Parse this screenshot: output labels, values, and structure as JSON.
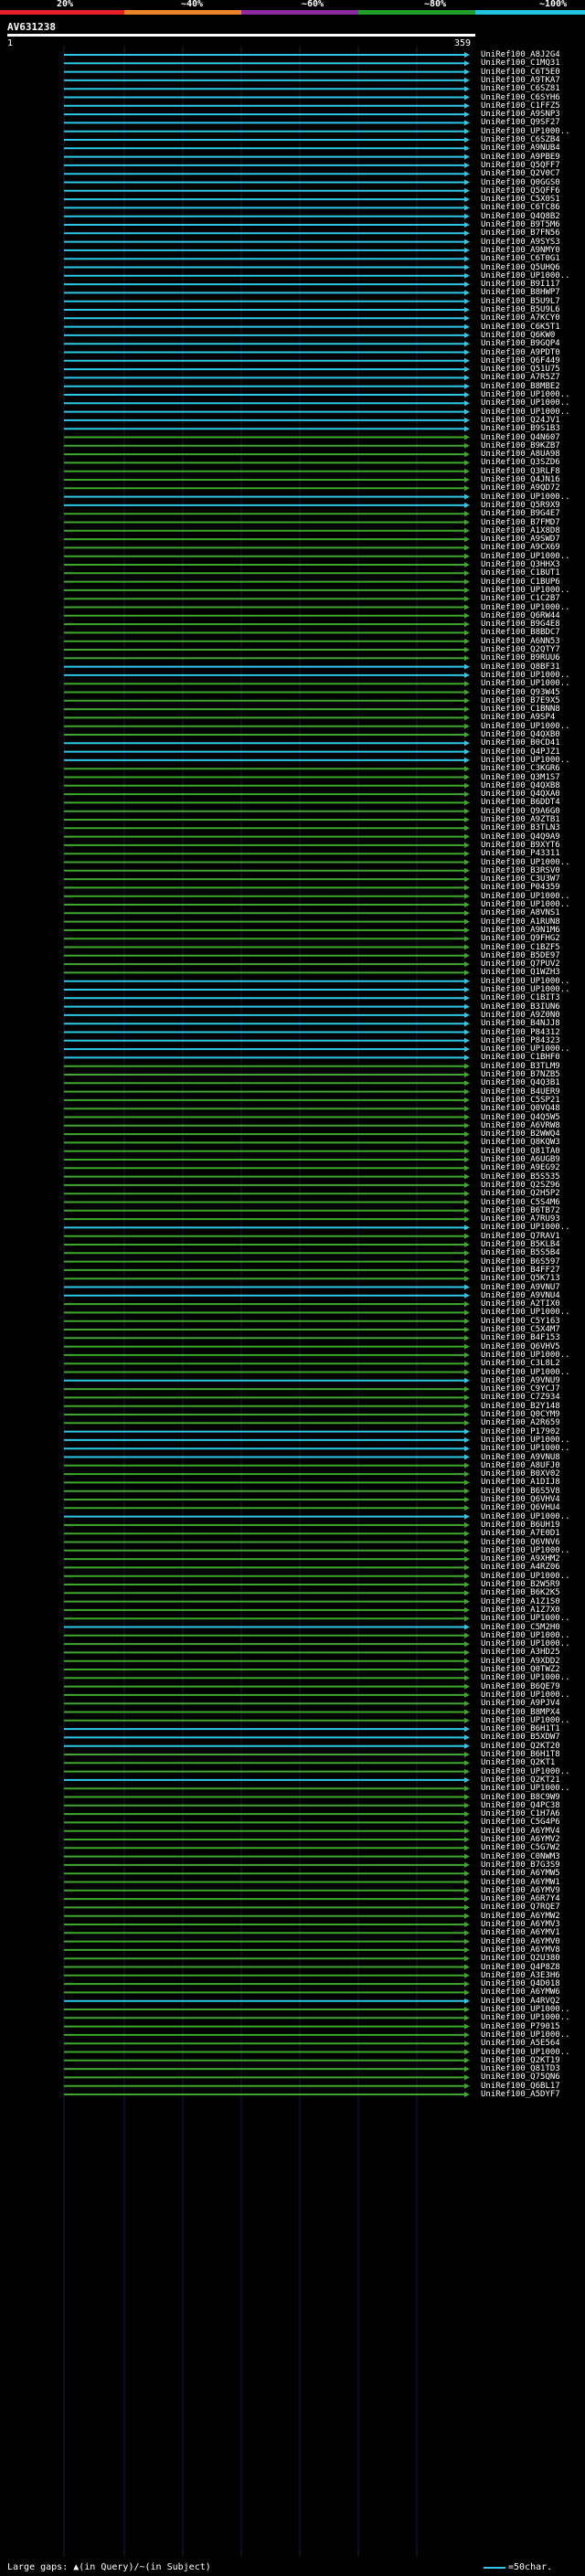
{
  "scale": {
    "labels": [
      "20%",
      "~40%",
      "~60%",
      "~80%",
      "~100%"
    ],
    "colors": [
      "#e8202a",
      "#e8832a",
      "#8a2a9e",
      "#1f9e2a",
      "#23c3e0"
    ]
  },
  "query": {
    "title": "AV631238",
    "start_label": "1",
    "end_label": "359"
  },
  "colors": {
    "cyan": "#2ec7e8",
    "green": "#3ea82c",
    "background": "#000000"
  },
  "legend": {
    "text": "Large gaps: ▲(in Query)/~(in Subject)",
    "key_label": "=50char."
  },
  "hits": [
    {
      "label": "UniRef100_A8J2G4",
      "color": "c"
    },
    {
      "label": "UniRef100_C1MQ31",
      "color": "c"
    },
    {
      "label": "UniRef100_C6T5E0",
      "color": "c"
    },
    {
      "label": "UniRef100_A9TKA7",
      "color": "c"
    },
    {
      "label": "UniRef100_C6SZ81",
      "color": "c"
    },
    {
      "label": "UniRef100_C6SYH6",
      "color": "c"
    },
    {
      "label": "UniRef100_C1FFZ5",
      "color": "c"
    },
    {
      "label": "UniRef100_A9SNP3",
      "color": "c"
    },
    {
      "label": "UniRef100_Q9SF27",
      "color": "c"
    },
    {
      "label": "UniRef100_UP1000..",
      "color": "c"
    },
    {
      "label": "UniRef100_C6SZB4",
      "color": "c"
    },
    {
      "label": "UniRef100_A9NUB4",
      "color": "c"
    },
    {
      "label": "UniRef100_A9PBE9",
      "color": "c"
    },
    {
      "label": "UniRef100_Q5QFF7",
      "color": "c"
    },
    {
      "label": "UniRef100_Q2V0C7",
      "color": "c"
    },
    {
      "label": "UniRef100_Q0GGS0",
      "color": "c"
    },
    {
      "label": "UniRef100_Q5QFF6",
      "color": "c"
    },
    {
      "label": "UniRef100_C5X0S1",
      "color": "c"
    },
    {
      "label": "UniRef100_C6TC86",
      "color": "c"
    },
    {
      "label": "UniRef100_Q4Q8B2",
      "color": "c"
    },
    {
      "label": "UniRef100_B9T5M6",
      "color": "c"
    },
    {
      "label": "UniRef100_B7FN56",
      "color": "c"
    },
    {
      "label": "UniRef100_A9SYS3",
      "color": "c"
    },
    {
      "label": "UniRef100_A9NMY0",
      "color": "c"
    },
    {
      "label": "UniRef100_C6T0G1",
      "color": "c"
    },
    {
      "label": "UniRef100_Q5UHQ6",
      "color": "c"
    },
    {
      "label": "UniRef100_UP1000..",
      "color": "c"
    },
    {
      "label": "UniRef100_B9I117",
      "color": "c"
    },
    {
      "label": "UniRef100_B8HWP7",
      "color": "c"
    },
    {
      "label": "UniRef100_B5U9L7",
      "color": "c"
    },
    {
      "label": "UniRef100_B5U9L6",
      "color": "c"
    },
    {
      "label": "UniRef100_A7KCY0",
      "color": "c"
    },
    {
      "label": "UniRef100_C6K5T1",
      "color": "c"
    },
    {
      "label": "UniRef100_Q6KW0",
      "color": "c"
    },
    {
      "label": "UniRef100_B9GQP4",
      "color": "c"
    },
    {
      "label": "UniRef100_A9PDT0",
      "color": "c"
    },
    {
      "label": "UniRef100_Q6F449",
      "color": "c"
    },
    {
      "label": "UniRef100_Q51U75",
      "color": "c"
    },
    {
      "label": "UniRef100_A7R5Z7",
      "color": "c"
    },
    {
      "label": "UniRef100_B8MBE2",
      "color": "c"
    },
    {
      "label": "UniRef100_UP1000..",
      "color": "c"
    },
    {
      "label": "UniRef100_UP1000..",
      "color": "c"
    },
    {
      "label": "UniRef100_UP1000..",
      "color": "c"
    },
    {
      "label": "UniRef100_Q24JV1",
      "color": "c"
    },
    {
      "label": "UniRef100_B9S1B3",
      "color": "c"
    },
    {
      "label": "UniRef100_Q4N607",
      "color": "g"
    },
    {
      "label": "UniRef100_B9KZB7",
      "color": "g"
    },
    {
      "label": "UniRef100_A8UA98",
      "color": "g"
    },
    {
      "label": "UniRef100_Q3SZD6",
      "color": "g"
    },
    {
      "label": "UniRef100_Q3RLF8",
      "color": "g"
    },
    {
      "label": "UniRef100_Q4JN16",
      "color": "g"
    },
    {
      "label": "UniRef100_A9QD72",
      "color": "g"
    },
    {
      "label": "UniRef100_UP1000..",
      "color": "c"
    },
    {
      "label": "UniRef100_Q5R9X9",
      "color": "c"
    },
    {
      "label": "UniRef100_B9G4E7",
      "color": "g"
    },
    {
      "label": "UniRef100_B7FMD7",
      "color": "g"
    },
    {
      "label": "UniRef100_A1X8D8",
      "color": "g"
    },
    {
      "label": "UniRef100_A9SWD7",
      "color": "g"
    },
    {
      "label": "UniRef100_A9CX69",
      "color": "g"
    },
    {
      "label": "UniRef100_UP1000..",
      "color": "g"
    },
    {
      "label": "UniRef100_Q3HHX3",
      "color": "g"
    },
    {
      "label": "UniRef100_C1BUT1",
      "color": "g"
    },
    {
      "label": "UniRef100_C1BUP6",
      "color": "g"
    },
    {
      "label": "UniRef100_UP1000..",
      "color": "g"
    },
    {
      "label": "UniRef100_C1C2B7",
      "color": "g"
    },
    {
      "label": "UniRef100_UP1000..",
      "color": "g"
    },
    {
      "label": "UniRef100_Q6RW44",
      "color": "g"
    },
    {
      "label": "UniRef100_B9G4E8",
      "color": "g"
    },
    {
      "label": "UniRef100_B8BDC7",
      "color": "g"
    },
    {
      "label": "UniRef100_A6NN53",
      "color": "g"
    },
    {
      "label": "UniRef100_Q2QTY7",
      "color": "g"
    },
    {
      "label": "UniRef100_B9RUU6",
      "color": "g"
    },
    {
      "label": "UniRef100_Q8BF31",
      "color": "c"
    },
    {
      "label": "UniRef100_UP1000..",
      "color": "c"
    },
    {
      "label": "UniRef100_UP1000..",
      "color": "g"
    },
    {
      "label": "UniRef100_Q93W45",
      "color": "g"
    },
    {
      "label": "UniRef100_B7E9X5",
      "color": "g"
    },
    {
      "label": "UniRef100_C1BNN8",
      "color": "g"
    },
    {
      "label": "UniRef100_A9SP4",
      "color": "g"
    },
    {
      "label": "UniRef100_UP1000..",
      "color": "g"
    },
    {
      "label": "UniRef100_Q4QXB0",
      "color": "g"
    },
    {
      "label": "UniRef100_B0CD41",
      "color": "c"
    },
    {
      "label": "UniRef100_Q4PJZ1",
      "color": "c"
    },
    {
      "label": "UniRef100_UP1000..",
      "color": "c"
    },
    {
      "label": "UniRef100_C3KGR6",
      "color": "g"
    },
    {
      "label": "UniRef100_Q3M1S7",
      "color": "g"
    },
    {
      "label": "UniRef100_Q4QXB8",
      "color": "g"
    },
    {
      "label": "UniRef100_Q4QXA0",
      "color": "g"
    },
    {
      "label": "UniRef100_B6DDT4",
      "color": "g"
    },
    {
      "label": "UniRef100_Q9A6G0",
      "color": "g"
    },
    {
      "label": "UniRef100_A9ZTB1",
      "color": "g"
    },
    {
      "label": "UniRef100_B3TLN3",
      "color": "g"
    },
    {
      "label": "UniRef100_Q4Q9A9",
      "color": "g"
    },
    {
      "label": "UniRef100_B9XYT6",
      "color": "g"
    },
    {
      "label": "UniRef100_P43311",
      "color": "g"
    },
    {
      "label": "UniRef100_UP1000..",
      "color": "g"
    },
    {
      "label": "UniRef100_B3RSV0",
      "color": "g"
    },
    {
      "label": "UniRef100_C3U3W7",
      "color": "g"
    },
    {
      "label": "UniRef100_P04359",
      "color": "g"
    },
    {
      "label": "UniRef100_UP1000..",
      "color": "g"
    },
    {
      "label": "UniRef100_UP1000..",
      "color": "g"
    },
    {
      "label": "UniRef100_A8VNS1",
      "color": "g"
    },
    {
      "label": "UniRef100_A1RUN8",
      "color": "g"
    },
    {
      "label": "UniRef100_A9N1M6",
      "color": "g"
    },
    {
      "label": "UniRef100_Q9FHG2",
      "color": "g"
    },
    {
      "label": "UniRef100_C1BZF5",
      "color": "g"
    },
    {
      "label": "UniRef100_B5DE97",
      "color": "g"
    },
    {
      "label": "UniRef100_Q7PUV2",
      "color": "g"
    },
    {
      "label": "UniRef100_Q1WZH3",
      "color": "g"
    },
    {
      "label": "UniRef100_UP1000..",
      "color": "c"
    },
    {
      "label": "UniRef100_UP1000..",
      "color": "c"
    },
    {
      "label": "UniRef100_C1BIT3",
      "color": "c"
    },
    {
      "label": "UniRef100_B3IUN6",
      "color": "c"
    },
    {
      "label": "UniRef100_A9Z0N0",
      "color": "c"
    },
    {
      "label": "UniRef100_B4NJJ8",
      "color": "c"
    },
    {
      "label": "UniRef100_P84312",
      "color": "c"
    },
    {
      "label": "UniRef100_P84323",
      "color": "c"
    },
    {
      "label": "UniRef100_UP1000..",
      "color": "c"
    },
    {
      "label": "UniRef100_C1BHF0",
      "color": "c"
    },
    {
      "label": "UniRef100_B3TLM9",
      "color": "g"
    },
    {
      "label": "UniRef100_B7NZB5",
      "color": "g"
    },
    {
      "label": "UniRef100_Q4Q3B1",
      "color": "g"
    },
    {
      "label": "UniRef100_B4UER9",
      "color": "g"
    },
    {
      "label": "UniRef100_C5SP21",
      "color": "g"
    },
    {
      "label": "UniRef100_Q0VQ48",
      "color": "g"
    },
    {
      "label": "UniRef100_Q4Q5W5",
      "color": "g"
    },
    {
      "label": "UniRef100_A6VRW8",
      "color": "g"
    },
    {
      "label": "UniRef100_B2WWQ4",
      "color": "g"
    },
    {
      "label": "UniRef100_Q8KQW3",
      "color": "g"
    },
    {
      "label": "UniRef100_Q81TA0",
      "color": "g"
    },
    {
      "label": "UniRef100_A6UGB9",
      "color": "g"
    },
    {
      "label": "UniRef100_A9EG92",
      "color": "g"
    },
    {
      "label": "UniRef100_B5S535",
      "color": "g"
    },
    {
      "label": "UniRef100_Q2SZ96",
      "color": "g"
    },
    {
      "label": "UniRef100_Q2H5P2",
      "color": "g"
    },
    {
      "label": "UniRef100_C5S4M6",
      "color": "g"
    },
    {
      "label": "UniRef100_B6TB72",
      "color": "g"
    },
    {
      "label": "UniRef100_A7RU93",
      "color": "g"
    },
    {
      "label": "UniRef100_UP1000..",
      "color": "c"
    },
    {
      "label": "UniRef100_Q7RAV1",
      "color": "g"
    },
    {
      "label": "UniRef100_B5KLB4",
      "color": "g"
    },
    {
      "label": "UniRef100_B5S5B4",
      "color": "g"
    },
    {
      "label": "UniRef100_B6S597",
      "color": "g"
    },
    {
      "label": "UniRef100_B4FF27",
      "color": "g"
    },
    {
      "label": "UniRef100_Q5K713",
      "color": "g"
    },
    {
      "label": "UniRef100_A9VNU7",
      "color": "c"
    },
    {
      "label": "UniRef100_A9VNU4",
      "color": "c"
    },
    {
      "label": "UniRef100_A2TIX0",
      "color": "g"
    },
    {
      "label": "UniRef100_UP1000..",
      "color": "g"
    },
    {
      "label": "UniRef100_C5Y163",
      "color": "g"
    },
    {
      "label": "UniRef100_C5X4M7",
      "color": "g"
    },
    {
      "label": "UniRef100_B4F153",
      "color": "g"
    },
    {
      "label": "UniRef100_Q6VHV5",
      "color": "g"
    },
    {
      "label": "UniRef100_UP1000..",
      "color": "g"
    },
    {
      "label": "UniRef100_C3L8L2",
      "color": "g"
    },
    {
      "label": "UniRef100_UP1000..",
      "color": "g"
    },
    {
      "label": "UniRef100_A9VNU9",
      "color": "c"
    },
    {
      "label": "UniRef100_C9YCJ7",
      "color": "g"
    },
    {
      "label": "UniRef100_C7Z934",
      "color": "g"
    },
    {
      "label": "UniRef100_B2Y148",
      "color": "g"
    },
    {
      "label": "UniRef100_Q0CYM9",
      "color": "g"
    },
    {
      "label": "UniRef100_A2R659",
      "color": "g"
    },
    {
      "label": "UniRef100_P17902",
      "color": "c"
    },
    {
      "label": "UniRef100_UP1000..",
      "color": "c"
    },
    {
      "label": "UniRef100_UP1000..",
      "color": "c"
    },
    {
      "label": "UniRef100_A9VNU8",
      "color": "c"
    },
    {
      "label": "UniRef100_A8UFJ0",
      "color": "g"
    },
    {
      "label": "UniRef100_B0XV02",
      "color": "g"
    },
    {
      "label": "UniRef100_A1DIJ8",
      "color": "g"
    },
    {
      "label": "UniRef100_B6S5V8",
      "color": "g"
    },
    {
      "label": "UniRef100_Q6VHV4",
      "color": "g"
    },
    {
      "label": "UniRef100_Q6VHU4",
      "color": "g"
    },
    {
      "label": "UniRef100_UP1000..",
      "color": "c"
    },
    {
      "label": "UniRef100_B6UH19",
      "color": "g"
    },
    {
      "label": "UniRef100_A7E0D1",
      "color": "g"
    },
    {
      "label": "UniRef100_Q6VNV6",
      "color": "g"
    },
    {
      "label": "UniRef100_UP1000..",
      "color": "g"
    },
    {
      "label": "UniRef100_A9XHM2",
      "color": "g"
    },
    {
      "label": "UniRef100_A4RZ06",
      "color": "g"
    },
    {
      "label": "UniRef100_UP1000..",
      "color": "g"
    },
    {
      "label": "UniRef100_B2W5R9",
      "color": "g"
    },
    {
      "label": "UniRef100_B6K2K5",
      "color": "g"
    },
    {
      "label": "UniRef100_A1Z1S0",
      "color": "g"
    },
    {
      "label": "UniRef100_A1Z7X0",
      "color": "g"
    },
    {
      "label": "UniRef100_UP1000..",
      "color": "g"
    },
    {
      "label": "UniRef100_C5M2H0",
      "color": "c"
    },
    {
      "label": "UniRef100_UP1000..",
      "color": "g"
    },
    {
      "label": "UniRef100_UP1000..",
      "color": "g"
    },
    {
      "label": "UniRef100_A3HD25",
      "color": "g"
    },
    {
      "label": "UniRef100_A9XDD2",
      "color": "g"
    },
    {
      "label": "UniRef100_Q0TWZ2",
      "color": "g"
    },
    {
      "label": "UniRef100_UP1000..",
      "color": "g"
    },
    {
      "label": "UniRef100_B6QE79",
      "color": "g"
    },
    {
      "label": "UniRef100_UP1000..",
      "color": "g"
    },
    {
      "label": "UniRef100_A9PJV4",
      "color": "g"
    },
    {
      "label": "UniRef100_B8MPX4",
      "color": "g"
    },
    {
      "label": "UniRef100_UP1000..",
      "color": "g"
    },
    {
      "label": "UniRef100_B6H1T1",
      "color": "c"
    },
    {
      "label": "UniRef100_B5XDW7",
      "color": "c"
    },
    {
      "label": "UniRef100_Q2KT20",
      "color": "c"
    },
    {
      "label": "UniRef100_B6H1T8",
      "color": "g"
    },
    {
      "label": "UniRef100_Q2KT1",
      "color": "g"
    },
    {
      "label": "UniRef100_UP1000..",
      "color": "g"
    },
    {
      "label": "UniRef100_Q2KT21",
      "color": "c"
    },
    {
      "label": "UniRef100_UP1000..",
      "color": "g"
    },
    {
      "label": "UniRef100_B8C9W9",
      "color": "g"
    },
    {
      "label": "UniRef100_Q4PC38",
      "color": "g"
    },
    {
      "label": "UniRef100_C1H7A6",
      "color": "g"
    },
    {
      "label": "UniRef100_C5G4P6",
      "color": "g"
    },
    {
      "label": "UniRef100_A6YMV4",
      "color": "g"
    },
    {
      "label": "UniRef100_A6YMV2",
      "color": "g"
    },
    {
      "label": "UniRef100_C5G7W2",
      "color": "g"
    },
    {
      "label": "UniRef100_C0NWM3",
      "color": "g"
    },
    {
      "label": "UniRef100_B7G3S9",
      "color": "g"
    },
    {
      "label": "UniRef100_A6YMW5",
      "color": "g"
    },
    {
      "label": "UniRef100_A6YMW1",
      "color": "g"
    },
    {
      "label": "UniRef100_A6YMV9",
      "color": "g"
    },
    {
      "label": "UniRef100_A6R7Y4",
      "color": "g"
    },
    {
      "label": "UniRef100_Q7RQE7",
      "color": "g"
    },
    {
      "label": "UniRef100_A6YMW2",
      "color": "g"
    },
    {
      "label": "UniRef100_A6YMV3",
      "color": "g"
    },
    {
      "label": "UniRef100_A6YMV1",
      "color": "g"
    },
    {
      "label": "UniRef100_A6YMV0",
      "color": "g"
    },
    {
      "label": "UniRef100_A6YMV8",
      "color": "g"
    },
    {
      "label": "UniRef100_Q2U380",
      "color": "g"
    },
    {
      "label": "UniRef100_Q4P8Z8",
      "color": "g"
    },
    {
      "label": "UniRef100_A3E3H6",
      "color": "g"
    },
    {
      "label": "UniRef100_Q4D018",
      "color": "g"
    },
    {
      "label": "UniRef100_A6YMW6",
      "color": "g"
    },
    {
      "label": "UniRef100_A4RVQ2",
      "color": "c"
    },
    {
      "label": "UniRef100_UP1000..",
      "color": "g"
    },
    {
      "label": "UniRef100_UP1000..",
      "color": "g"
    },
    {
      "label": "UniRef100_P79015",
      "color": "g"
    },
    {
      "label": "UniRef100_UP1000..",
      "color": "g"
    },
    {
      "label": "UniRef100_A5E564",
      "color": "g"
    },
    {
      "label": "UniRef100_UP1000..",
      "color": "g"
    },
    {
      "label": "UniRef100_Q2KT19",
      "color": "g"
    },
    {
      "label": "UniRef100_Q81TD3",
      "color": "g"
    },
    {
      "label": "UniRef100_Q75QN6",
      "color": "g"
    },
    {
      "label": "UniRef100_Q6BL17",
      "color": "g"
    },
    {
      "label": "UniRef100_A5DYF7",
      "color": "g"
    }
  ]
}
